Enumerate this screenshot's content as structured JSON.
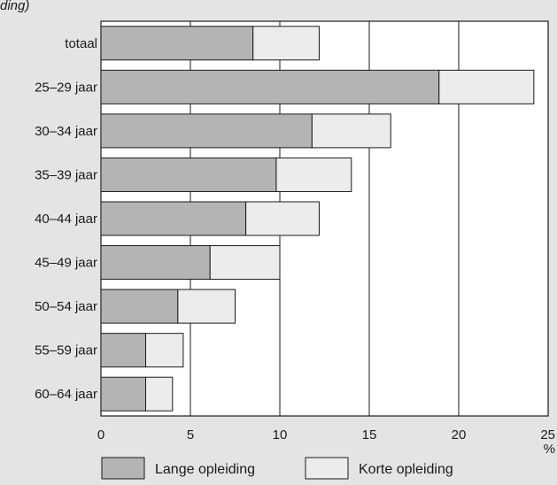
{
  "page_text": {
    "top_fragment": "ding)"
  },
  "colors": {
    "panel_bg": "#e4e4e4",
    "plot_bg": "#ffffff",
    "lange": "#b4b4b4",
    "korte": "#ececec",
    "stroke": "#1a1a1a"
  },
  "chart_data": {
    "type": "bar",
    "orientation": "horizontal",
    "stacked": true,
    "categories": [
      "totaal",
      "25–29 jaar",
      "30–34 jaar",
      "35–39 jaar",
      "40–44 jaar",
      "45–49 jaar",
      "50–54 jaar",
      "55–59 jaar",
      "60–64 jaar"
    ],
    "series": [
      {
        "name": "Lange opleiding",
        "values": [
          8.5,
          18.9,
          11.8,
          9.8,
          8.1,
          6.1,
          4.3,
          2.5,
          2.5
        ]
      },
      {
        "name": "Korte opleiding",
        "values": [
          3.7,
          5.3,
          4.4,
          4.2,
          4.1,
          3.9,
          3.2,
          2.1,
          1.5
        ]
      }
    ],
    "xlim": [
      0,
      25
    ],
    "xticks": [
      0,
      5,
      10,
      15,
      20,
      25
    ],
    "xunit": "%",
    "grid": "vertical",
    "legend_position": "bottom"
  }
}
